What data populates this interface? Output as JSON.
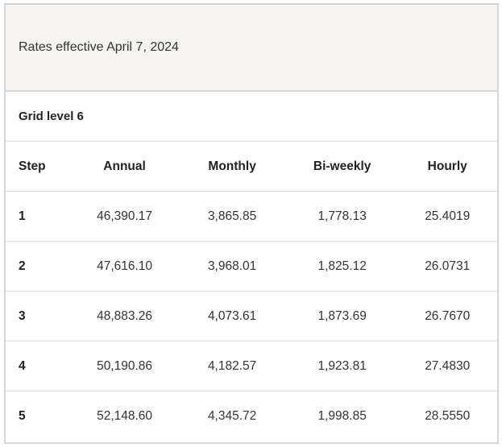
{
  "caption": "Rates effective April 7, 2024",
  "grid_level": "Grid level 6",
  "columns": [
    "Step",
    "Annual",
    "Monthly",
    "Bi-weekly",
    "Hourly"
  ],
  "rows": [
    [
      "1",
      "46,390.17",
      "3,865.85",
      "1,778.13",
      "25.4019"
    ],
    [
      "2",
      "47,616.10",
      "3,968.01",
      "1,825.12",
      "26.0731"
    ],
    [
      "3",
      "48,883.26",
      "4,073.61",
      "1,873.69",
      "26.7670"
    ],
    [
      "4",
      "50,190.86",
      "4,182.57",
      "1,923.81",
      "27.4830"
    ],
    [
      "5",
      "52,148.60",
      "4,345.72",
      "1,998.85",
      "28.5550"
    ]
  ]
}
